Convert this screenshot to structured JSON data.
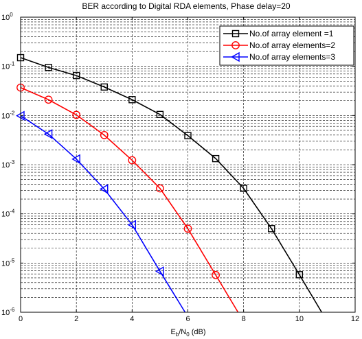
{
  "chart_data": {
    "type": "line",
    "title": "BER according to Digital RDA elements, Phase delay=20",
    "xlabel_main": "E",
    "xlabel_sub1": "b",
    "xlabel_mid": "/N",
    "xlabel_sub2": "0",
    "xlabel_tail": " (dB)",
    "xlim": [
      0,
      12
    ],
    "ylim": [
      1e-06,
      1
    ],
    "yscale": "log",
    "grid": true,
    "legend_position": "top-right",
    "x_ticks": [
      0,
      2,
      4,
      6,
      8,
      10,
      12
    ],
    "x_tick_labels": [
      "0",
      "2",
      "4",
      "6",
      "8",
      "10",
      "12"
    ],
    "y_ticks": [
      {
        "value": 1,
        "base": "10",
        "exp": "0"
      },
      {
        "value": 0.1,
        "base": "10",
        "exp": "-1"
      },
      {
        "value": 0.01,
        "base": "10",
        "exp": "-2"
      },
      {
        "value": 0.001,
        "base": "10",
        "exp": "-3"
      },
      {
        "value": 0.0001,
        "base": "10",
        "exp": "-4"
      },
      {
        "value": 1e-05,
        "base": "10",
        "exp": "-5"
      },
      {
        "value": 1e-06,
        "base": "10",
        "exp": "-6"
      }
    ],
    "series": [
      {
        "name": "No.of array element =1",
        "color": "#000000",
        "marker": "square",
        "x": [
          0,
          1,
          2,
          3,
          4,
          5,
          6,
          7,
          8,
          9,
          10,
          10.8
        ],
        "y": [
          0.15,
          0.095,
          0.065,
          0.038,
          0.021,
          0.0105,
          0.0039,
          0.00133,
          0.00033,
          5e-05,
          5.8e-06,
          1e-06
        ],
        "marker_x": [
          0,
          1,
          2,
          3,
          4,
          5,
          6,
          7,
          8,
          9,
          10
        ]
      },
      {
        "name": "No.of array elements=2",
        "color": "#ff0000",
        "marker": "circle",
        "x": [
          0,
          1,
          2,
          3,
          4,
          5,
          6,
          7,
          7.8
        ],
        "y": [
          0.037,
          0.021,
          0.0103,
          0.004,
          0.00123,
          0.00033,
          5e-05,
          5.7e-06,
          1e-06
        ],
        "marker_x": [
          0,
          1,
          2,
          3,
          4,
          5,
          6,
          7
        ]
      },
      {
        "name": "No.of array elements=3",
        "color": "#0000ff",
        "marker": "triangle-left",
        "x": [
          0,
          1,
          2,
          3,
          4,
          5,
          5.9
        ],
        "y": [
          0.0099,
          0.0042,
          0.0013,
          0.00032,
          6e-05,
          6.8e-06,
          1e-06
        ],
        "marker_x": [
          0,
          1,
          2,
          3,
          4,
          5
        ]
      }
    ]
  }
}
